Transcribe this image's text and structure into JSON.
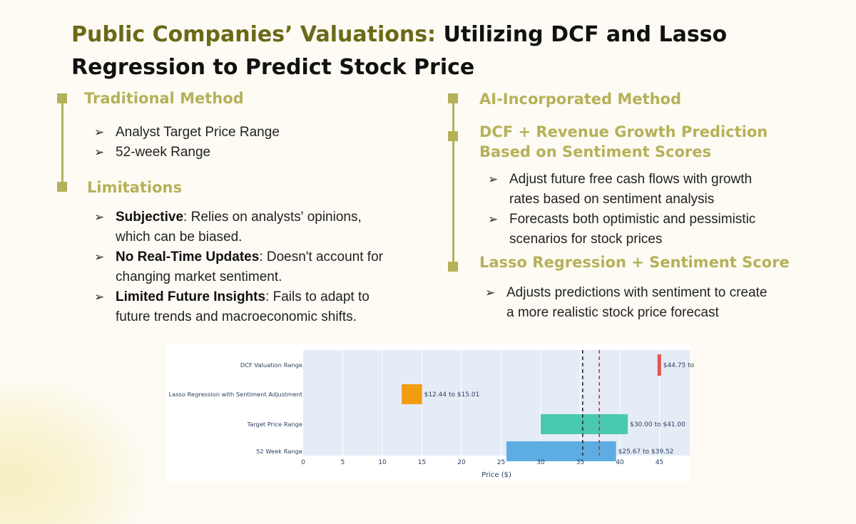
{
  "title": {
    "highlight": "Public Companies’ Valuations:",
    "rest_line1": " Utilizing DCF and Lasso",
    "line2": "Regression to Predict Stock Price"
  },
  "left": {
    "traditional_heading": "Traditional Method",
    "traditional_items": [
      "Analyst Target Price Range",
      "52-week Range"
    ],
    "limitations_heading": "Limitations",
    "limitations_items": [
      {
        "bold": "Subjective",
        "text": ": Relies on analysts' opinions,",
        "cont": "which can be biased."
      },
      {
        "bold": "No Real-Time Updates",
        "text": ": Doesn't account for",
        "cont": "changing market sentiment."
      },
      {
        "bold": "Limited Future Insights",
        "text": ": Fails to adapt to",
        "cont": "future trends and macroeconomic shifts."
      }
    ]
  },
  "right": {
    "ai_heading": "AI-Incorporated Method",
    "dcf_heading_1": "DCF + Revenue Growth Prediction",
    "dcf_heading_2": "Based on Sentiment Scores",
    "dcf_items": [
      {
        "text": "Adjust future free cash flows with growth",
        "cont": "rates based on sentiment analysis"
      },
      {
        "text": "Forecasts both optimistic and pessimistic",
        "cont": "scenarios for stock prices"
      }
    ],
    "lasso_heading": "Lasso Regression + Sentiment Score",
    "lasso_items": [
      {
        "text": "Adjusts predictions with sentiment to create",
        "cont": "a more realistic stock price forecast"
      }
    ]
  },
  "bullet_glyph": "➢",
  "chart_data": {
    "type": "bar",
    "orientation": "horizontal-range",
    "xlabel": "Price ($)",
    "xlim": [
      0,
      49
    ],
    "xticks": [
      0,
      5,
      10,
      15,
      20,
      25,
      30,
      35,
      40,
      45
    ],
    "series": [
      {
        "name": "DCF Valuation Range",
        "start": 44.75,
        "end": 45.2,
        "label": "$44.75 to",
        "color": "#e8514a"
      },
      {
        "name": "Lasso Regression with Sentiment Adjustment",
        "start": 12.44,
        "end": 15.01,
        "label": "$12.44 to $15.01",
        "color": "#f39c12"
      },
      {
        "name": "Target Price Range",
        "start": 30.0,
        "end": 41.0,
        "label": "$30.00 to $41.00",
        "color": "#48c9b0"
      },
      {
        "name": "52 Week Range",
        "start": 25.67,
        "end": 39.52,
        "label": "$25.67 to $39.52",
        "color": "#5dade2"
      }
    ],
    "reference_lines": [
      {
        "value": 35.3,
        "color": "#222222"
      },
      {
        "value": 37.4,
        "color": "#d62728"
      }
    ]
  }
}
